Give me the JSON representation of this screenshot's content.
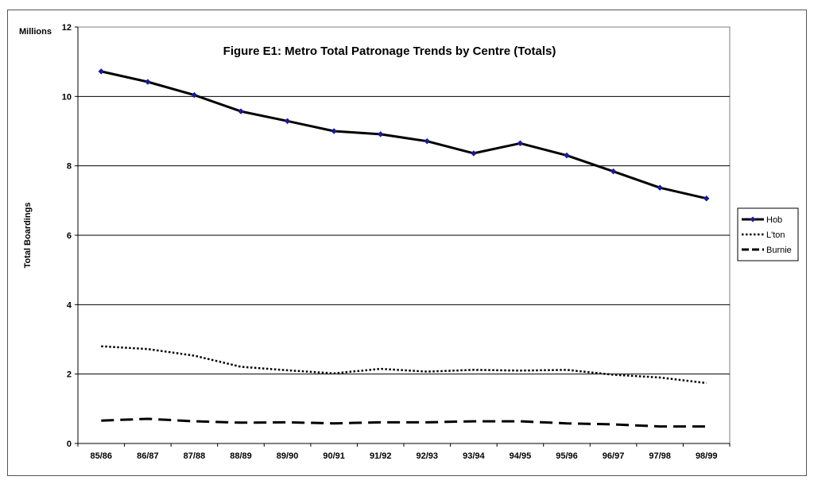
{
  "chart_data": {
    "type": "line",
    "title": "Figure E1: Metro Total Patronage Trends by Centre (Totals)",
    "unit_label": "Millions",
    "ylabel": "Total Boardings",
    "xlabel": "",
    "ylim": [
      0,
      12
    ],
    "yticks": [
      0,
      2,
      4,
      6,
      8,
      10,
      12
    ],
    "grid": "horizontal",
    "legend_position": "right",
    "categories": [
      "85/86",
      "86/87",
      "87/88",
      "88/89",
      "89/90",
      "90/91",
      "91/92",
      "92/93",
      "93/94",
      "94/95",
      "95/96",
      "96/97",
      "97/98",
      "98/99"
    ],
    "series": [
      {
        "name": "Hob",
        "style": "solid-markers",
        "color": "#000000",
        "marker_color": "#1a1a9a",
        "values": [
          10.72,
          10.42,
          10.04,
          9.57,
          9.29,
          9.0,
          8.91,
          8.71,
          8.36,
          8.65,
          8.3,
          7.84,
          7.37,
          7.06
        ]
      },
      {
        "name": "L'ton",
        "style": "dotted",
        "color": "#000000",
        "values": [
          2.8,
          2.72,
          2.53,
          2.21,
          2.11,
          2.02,
          2.15,
          2.07,
          2.12,
          2.1,
          2.12,
          1.98,
          1.9,
          1.74
        ]
      },
      {
        "name": "Burnie",
        "style": "dashed",
        "color": "#000000",
        "values": [
          0.66,
          0.71,
          0.64,
          0.6,
          0.61,
          0.58,
          0.61,
          0.61,
          0.64,
          0.64,
          0.58,
          0.55,
          0.49,
          0.49
        ]
      }
    ]
  }
}
